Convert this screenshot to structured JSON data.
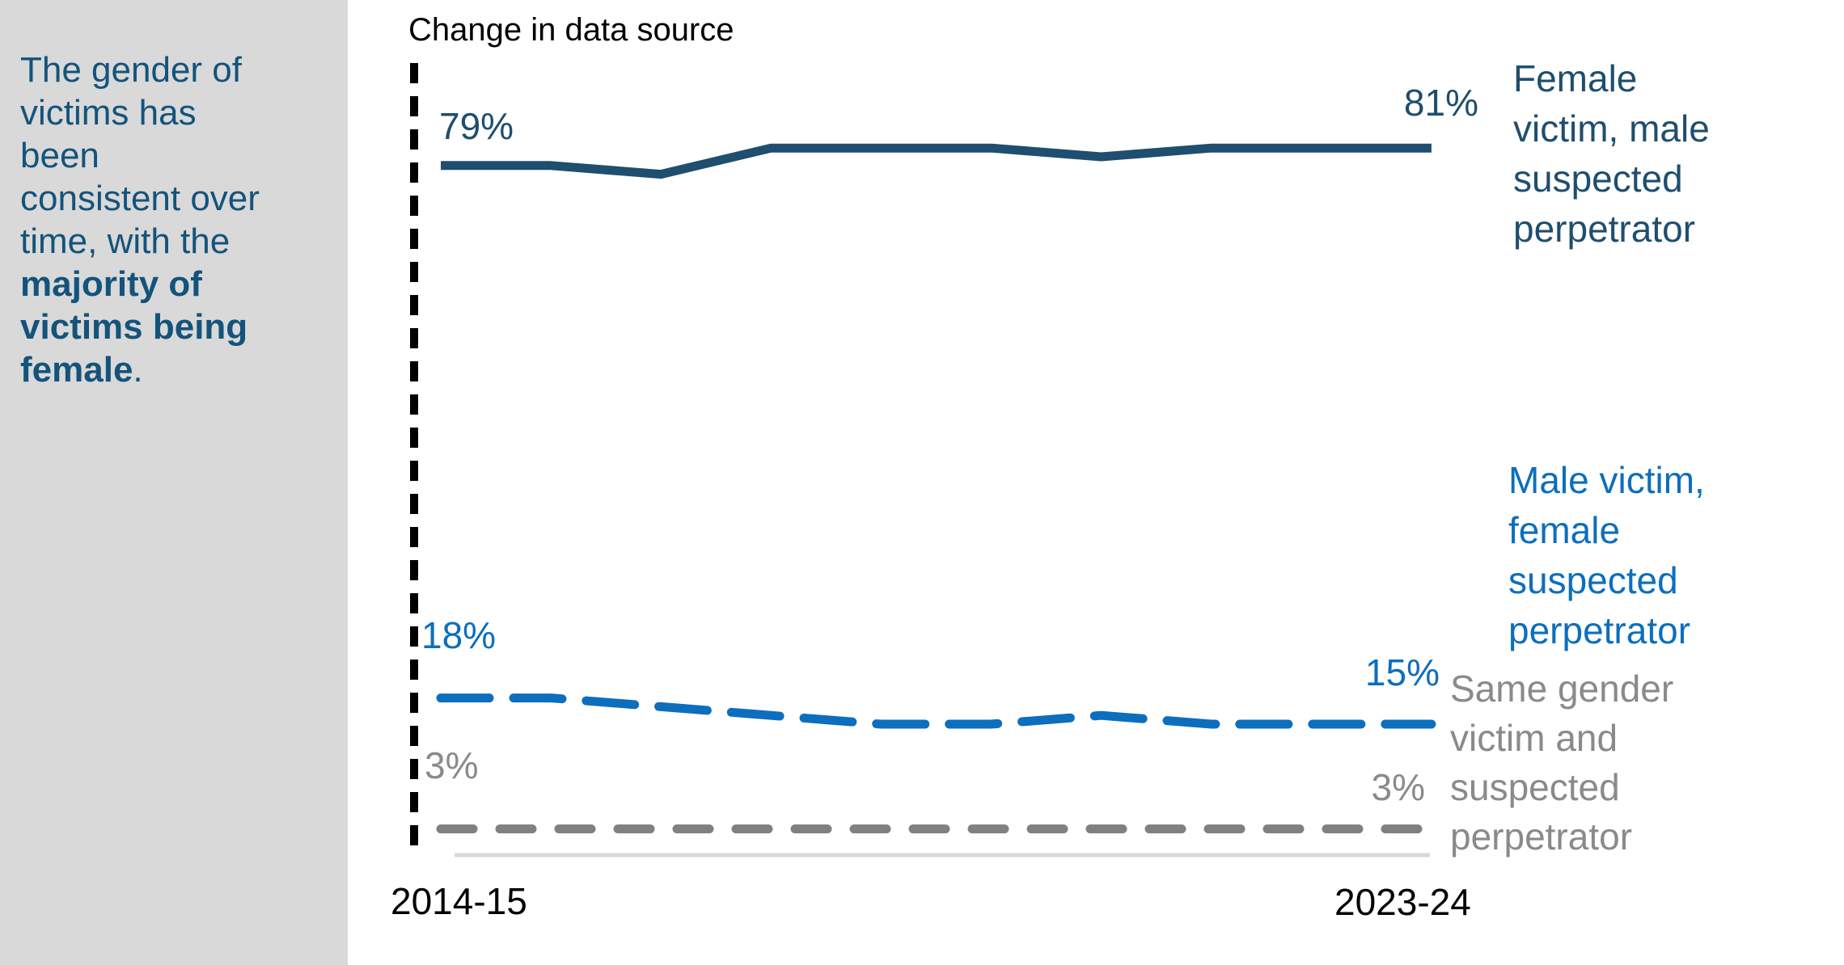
{
  "sidebar": {
    "background": "#d9d9d9",
    "text_color": "#14537b",
    "lines": [
      {
        "text": "The gender of",
        "bold": false
      },
      {
        "text": "victims has",
        "bold": false
      },
      {
        "text": "been",
        "bold": false
      },
      {
        "text": "consistent over",
        "bold": false
      },
      {
        "text": "time, with the",
        "bold": false
      },
      {
        "text": "majority of",
        "bold": true
      },
      {
        "text": "victims being",
        "bold": true
      }
    ],
    "last_line_bold": "female",
    "last_line_regular": "."
  },
  "chart_data": {
    "type": "line",
    "annotation": "Change in data source",
    "x_tick_labels": [
      "2014-15",
      "2023-24"
    ],
    "n_points": 10,
    "ylim": [
      0,
      100
    ],
    "grid": false,
    "legend_position": "right",
    "axis_line_color": "#d9d9d9",
    "annotation_line_color": "#000000",
    "series": [
      {
        "name": "Female victim, male suspected perpetrator",
        "legend_lines": [
          "Female",
          "victim, male",
          "suspected",
          "perpetrator"
        ],
        "color": "#1f4e6e",
        "style": "solid",
        "values": [
          79,
          79,
          78,
          81,
          81,
          81,
          80,
          81,
          81,
          81
        ],
        "start_label": "79%",
        "end_label": "81%"
      },
      {
        "name": "Male victim, female suspected perpetrator",
        "legend_lines": [
          "Male victim,",
          "female",
          "suspected",
          "perpetrator"
        ],
        "color": "#0d6ebe",
        "style": "dashed",
        "values": [
          18,
          18,
          17,
          16,
          15,
          15,
          16,
          15,
          15,
          15
        ],
        "start_label": "18%",
        "end_label": "15%"
      },
      {
        "name": "Same gender victim and suspected perpetrator",
        "legend_lines": [
          "Same gender",
          "victim and",
          "suspected",
          "perpetrator"
        ],
        "color": "#808080",
        "style": "dashed-short",
        "values": [
          3,
          3,
          3,
          3,
          3,
          3,
          3,
          3,
          3,
          3
        ],
        "start_label": "3%",
        "end_label": "3%"
      }
    ]
  }
}
